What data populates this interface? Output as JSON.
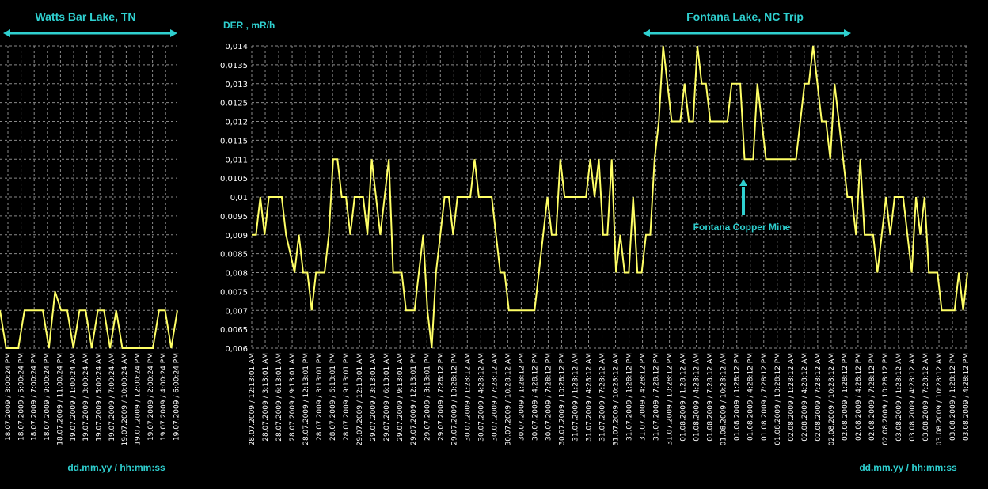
{
  "colors": {
    "background": "#000000",
    "grid": "#8a8a8a",
    "line": "#ffff66",
    "annotation": "#2fd0d0",
    "text": "#ffffff"
  },
  "chart_data": [
    {
      "type": "line",
      "title": "Watts Bar Lake, TN",
      "xlabel": "dd.mm.yy / hh:mm:ss",
      "ylabel": "",
      "ylim": [
        0.006,
        0.014
      ],
      "grid": true,
      "x_tick_labels": [
        "18.07.2009 / 3:00:24 PM",
        "18.07.2009 / 5:00:24 PM",
        "18.07.2009 / 7:00:24 PM",
        "18.07.2009 / 9:00:24 PM",
        "18.07.2009 / 11:00:24 PM",
        "19.07.2009 / 1:00:24 AM",
        "19.07.2009 / 3:00:24 AM",
        "19.07.2009 / 5:00:24 AM",
        "19.07.2009 / 7:00:24 AM",
        "19.07.2009 / 10:00:24 AM",
        "19.07.2009 / 12:00:24 PM",
        "19.07.2009 / 2:00:24 PM",
        "19.07.2009 / 4:00:24 PM",
        "19.07.2009 / 6:00:24 PM"
      ],
      "series": [
        {
          "values": [
            0.007,
            0.006,
            0.006,
            0.006,
            0.007,
            0.007,
            0.007,
            0.007,
            0.006,
            0.0075,
            0.007,
            0.007,
            0.006,
            0.007,
            0.007,
            0.006,
            0.007,
            0.007,
            0.006,
            0.007,
            0.006,
            0.006,
            0.006,
            0.006,
            0.006,
            0.006,
            0.007,
            0.007,
            0.006,
            0.007
          ]
        }
      ]
    },
    {
      "type": "line",
      "title": "Fontana Lake, NC Trip",
      "xlabel": "dd.mm.yy / hh:mm:ss",
      "ylabel": "DER , mR/h",
      "ylim": [
        0.006,
        0.014
      ],
      "grid": true,
      "y_tick_labels": [
        "0,006",
        "0,0065",
        "0,007",
        "0,0075",
        "0,008",
        "0,0085",
        "0,009",
        "0,0095",
        "0,01",
        "0,0105",
        "0,011",
        "0,0115",
        "0,012",
        "0,0125",
        "0,013",
        "0,0135",
        "0,014"
      ],
      "x_tick_labels": [
        "28.07.2009 / 12:13:01 AM",
        "28.07.2009 / 3:13:01 AM",
        "28.07.2009 / 6:13:01 AM",
        "28.07.2009 / 9:13:01 AM",
        "28.07.2009 / 12:13:01 PM",
        "28.07.2009 / 3:13:01 PM",
        "28.07.2009 / 6:13:01 PM",
        "28.07.2009 / 9:13:01 PM",
        "29.07.2009 / 12:13:01 AM",
        "29.07.2009 / 3:13:01 AM",
        "29.07.2009 / 6:13:01 AM",
        "29.07.2009 / 9:13:01 AM",
        "29.07.2009 / 12:13:01 PM",
        "29.07.2009 / 3:13:01 PM",
        "29.07.2009 / 7:28:12 PM",
        "29.07.2009 / 10:28:12 PM",
        "30.07.2009 / 1:28:12 AM",
        "30.07.2009 / 4:28:12 AM",
        "30.07.2009 / 7:28:12 AM",
        "30.07.2009 / 10:28:12 AM",
        "30.07.2009 / 1:28:12 PM",
        "30.07.2009 / 4:28:12 PM",
        "30.07.2009 / 7:28:12 PM",
        "30.07.2009 / 10:28:12 PM",
        "31.07.2009 / 1:28:12 AM",
        "31.07.2009 / 4:28:12 AM",
        "31.07.2009 / 7:28:12 AM",
        "31.07.2009 / 10:28:12 AM",
        "31.07.2009 / 1:28:12 PM",
        "31.07.2009 / 4:28:12 PM",
        "31.07.2009 / 7:28:12 PM",
        "31.07.2009 / 10:28:12 PM",
        "01.08.2009 / 1:28:12 AM",
        "01.08.2009 / 4:28:12 AM",
        "01.08.2009 / 7:28:12 AM",
        "01.08.2009 / 10:28:12 AM",
        "01.08.2009 / 1:28:12 PM",
        "01.08.2009 / 4:28:12 PM",
        "01.08.2009 / 7:28:12 PM",
        "01.08.2009 / 10:28:12 PM",
        "02.08.2009 / 1:28:12 AM",
        "02.08.2009 / 4:28:12 AM",
        "02.08.2009 / 7:28:12 AM",
        "02.08.2009 / 10:28:12 AM",
        "02.08.2009 / 1:28:12 PM",
        "02.08.2009 / 4:28:12 PM",
        "02.08.2009 / 7:28:12 PM",
        "02.08.2009 / 10:28:12 PM",
        "03.08.2009 / 1:28:12 AM",
        "03.08.2009 / 4:28:12 AM",
        "03.08.2009 / 7:28:12 AM",
        "03.08.2009 / 10:28:12 AM",
        "03.08.2009 / 1:28:12 PM",
        "03.08.2009 / 4:28:12 PM"
      ],
      "annotations": [
        "Fontana Copper Mine"
      ],
      "series": [
        {
          "values": [
            0.009,
            0.009,
            0.01,
            0.009,
            0.01,
            0.01,
            0.01,
            0.01,
            0.009,
            0.0085,
            0.008,
            0.009,
            0.008,
            0.008,
            0.007,
            0.008,
            0.008,
            0.008,
            0.009,
            0.011,
            0.011,
            0.01,
            0.01,
            0.009,
            0.01,
            0.01,
            0.01,
            0.009,
            0.011,
            0.01,
            0.009,
            0.01,
            0.011,
            0.008,
            0.008,
            0.008,
            0.007,
            0.007,
            0.007,
            0.008,
            0.009,
            0.007,
            0.006,
            0.008,
            0.009,
            0.01,
            0.01,
            0.009,
            0.01,
            0.01,
            0.01,
            0.01,
            0.011,
            0.01,
            0.01,
            0.01,
            0.01,
            0.009,
            0.008,
            0.008,
            0.007,
            0.007,
            0.007,
            0.007,
            0.007,
            0.007,
            0.007,
            0.008,
            0.009,
            0.01,
            0.009,
            0.009,
            0.011,
            0.01,
            0.01,
            0.01,
            0.01,
            0.01,
            0.01,
            0.011,
            0.01,
            0.011,
            0.009,
            0.009,
            0.011,
            0.008,
            0.009,
            0.008,
            0.008,
            0.01,
            0.008,
            0.008,
            0.009,
            0.009,
            0.011,
            0.012,
            0.014,
            0.013,
            0.012,
            0.012,
            0.012,
            0.013,
            0.012,
            0.012,
            0.014,
            0.013,
            0.013,
            0.012,
            0.012,
            0.012,
            0.012,
            0.012,
            0.013,
            0.013,
            0.013,
            0.011,
            0.011,
            0.011,
            0.013,
            0.012,
            0.011,
            0.011,
            0.011,
            0.011,
            0.011,
            0.011,
            0.011,
            0.011,
            0.012,
            0.013,
            0.013,
            0.014,
            0.013,
            0.012,
            0.012,
            0.011,
            0.013,
            0.012,
            0.011,
            0.01,
            0.01,
            0.009,
            0.011,
            0.009,
            0.009,
            0.009,
            0.008,
            0.009,
            0.01,
            0.009,
            0.01,
            0.01,
            0.01,
            0.009,
            0.008,
            0.01,
            0.009,
            0.01,
            0.008,
            0.008,
            0.008,
            0.007,
            0.007,
            0.007,
            0.007,
            0.008,
            0.007,
            0.008
          ]
        }
      ]
    }
  ]
}
